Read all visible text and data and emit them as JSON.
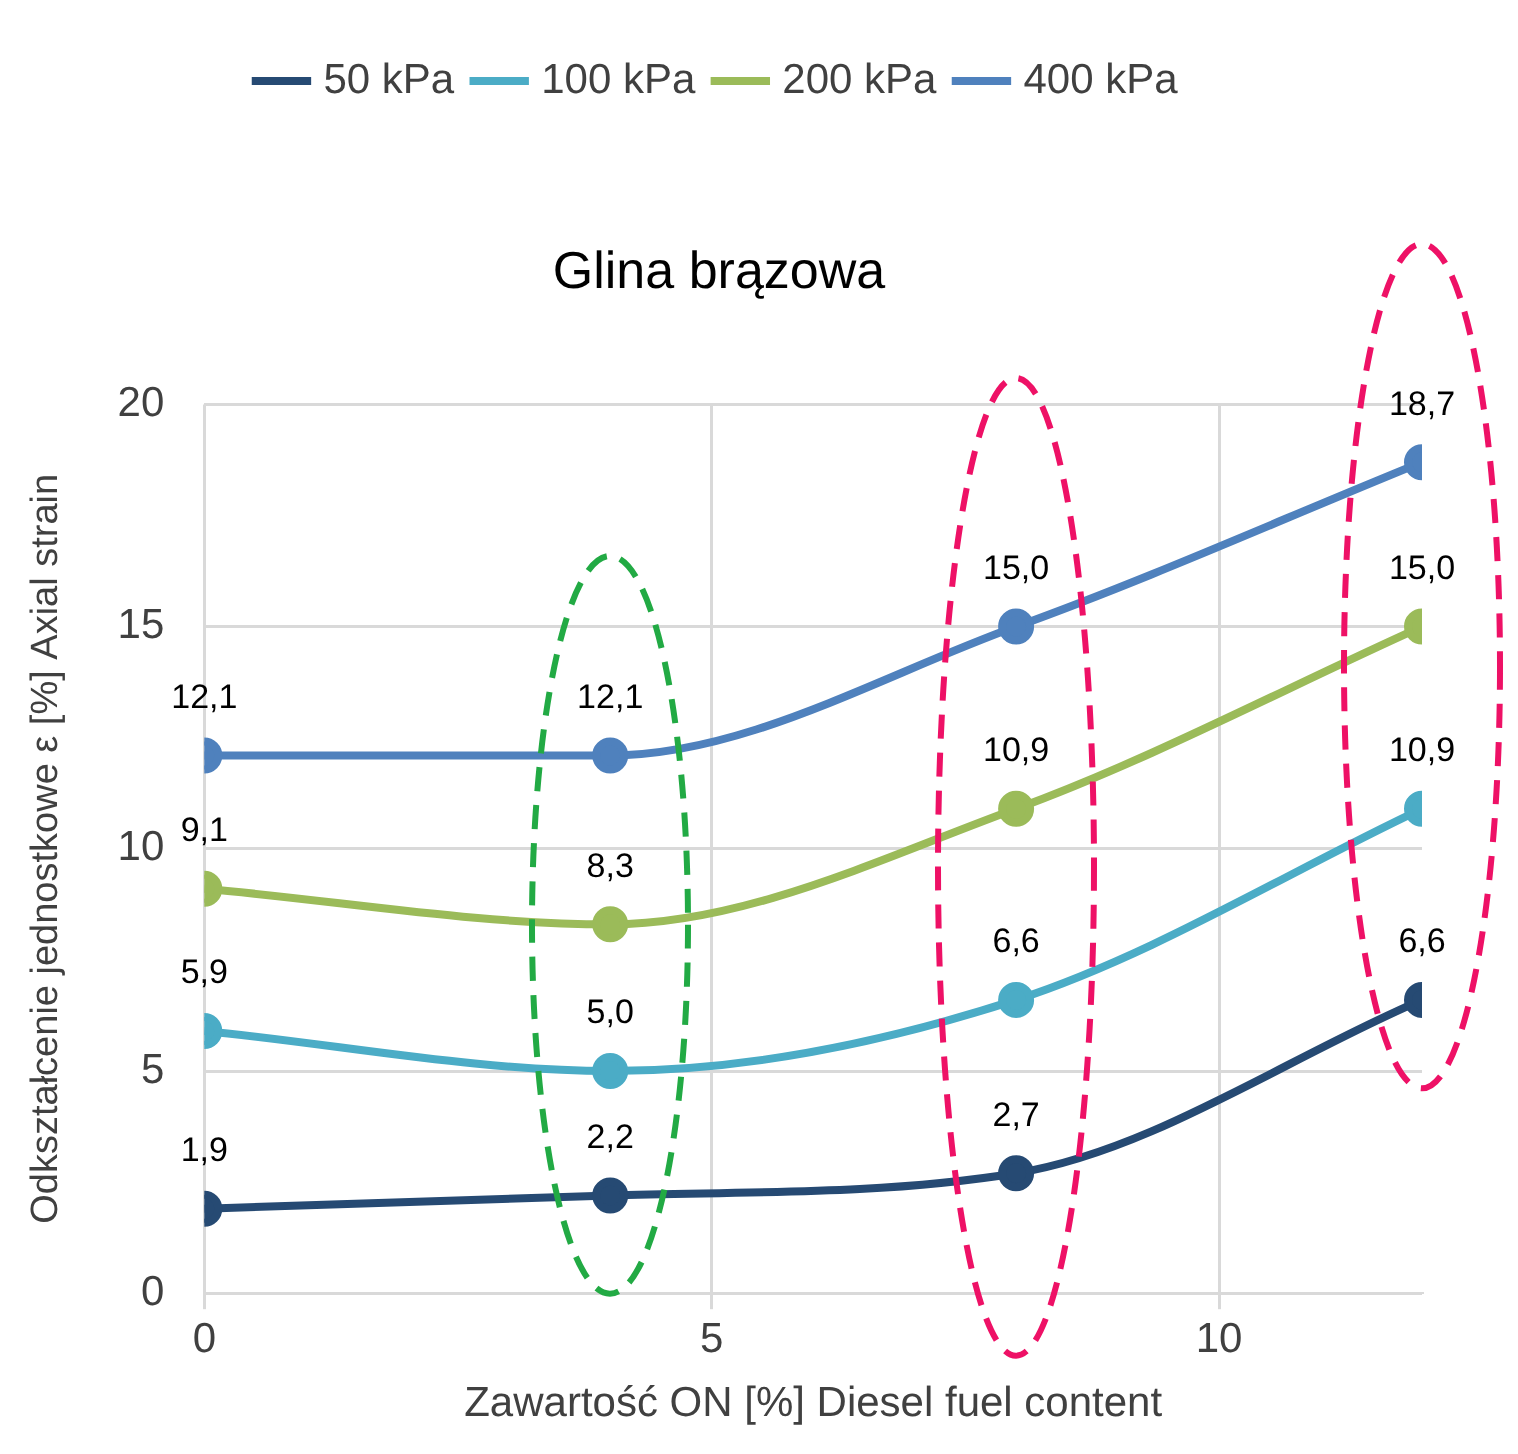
{
  "chart_data": {
    "type": "line",
    "title": "Glina brązowa",
    "xlabel": "Zawartość ON [%] Diesel fuel content",
    "ylabel": "Odkształcenie jednostkowe ε [%] Axial strain",
    "x": [
      0,
      4,
      8,
      12
    ],
    "series": [
      {
        "name": "50 kPa",
        "color": "#264a73",
        "values": [
          1.9,
          2.2,
          2.7,
          6.6
        ],
        "value_labels": [
          "1,9",
          "2,2",
          "2,7",
          "6,6"
        ]
      },
      {
        "name": "100 kPa",
        "color": "#4bacc6",
        "values": [
          5.9,
          5.0,
          6.6,
          10.9
        ],
        "value_labels": [
          "5,9",
          "5,0",
          "6,6",
          "10,9"
        ]
      },
      {
        "name": "200 kPa",
        "color": "#9bbb59",
        "values": [
          9.1,
          8.3,
          10.9,
          15.0
        ],
        "value_labels": [
          "9,1",
          "8,3",
          "10,9",
          "15,0"
        ]
      },
      {
        "name": "400 kPa",
        "color": "#4f81bd",
        "values": [
          12.1,
          12.1,
          15.0,
          18.7
        ],
        "value_labels": [
          "12,1",
          "12,1",
          "15,0",
          "18,7"
        ]
      }
    ],
    "xlim": [
      0,
      12
    ],
    "xticks": [
      0,
      5,
      10
    ],
    "ylim": [
      0,
      20
    ],
    "yticks": [
      0,
      5,
      10,
      15,
      20
    ],
    "grid": true,
    "legend": "top",
    "marker": "circle",
    "line_style": "solid"
  }
}
